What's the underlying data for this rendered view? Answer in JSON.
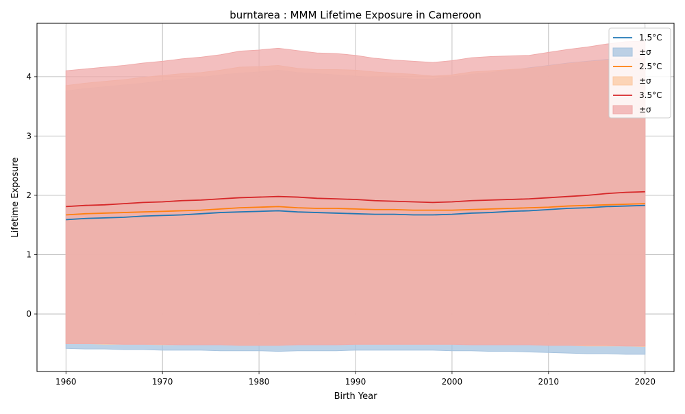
{
  "chart_data": {
    "type": "area",
    "title": "burntarea : MMM Lifetime Exposure in Cameroon",
    "xlabel": "Birth Year",
    "ylabel": "Lifetime Exposure",
    "xlim": [
      1957,
      2023
    ],
    "ylim": [
      -0.97,
      4.9
    ],
    "xticks": [
      1960,
      1970,
      1980,
      1990,
      2000,
      2010,
      2020
    ],
    "yticks": [
      0,
      1,
      2,
      3,
      4
    ],
    "grid": true,
    "legend_position": "top-right",
    "band_label": "±σ",
    "x": [
      1960,
      1962,
      1964,
      1966,
      1968,
      1970,
      1972,
      1974,
      1976,
      1978,
      1980,
      1982,
      1984,
      1986,
      1988,
      1990,
      1992,
      1994,
      1996,
      1998,
      2000,
      2002,
      2004,
      2006,
      2008,
      2010,
      2012,
      2014,
      2016,
      2018,
      2020
    ],
    "series": [
      {
        "name": "1.5°C",
        "color": "#1f77b4",
        "band_color": "#a6c3df",
        "mean": [
          1.59,
          1.61,
          1.62,
          1.63,
          1.65,
          1.66,
          1.67,
          1.69,
          1.71,
          1.72,
          1.73,
          1.74,
          1.72,
          1.71,
          1.7,
          1.69,
          1.68,
          1.68,
          1.67,
          1.67,
          1.68,
          1.7,
          1.71,
          1.73,
          1.74,
          1.76,
          1.78,
          1.79,
          1.81,
          1.82,
          1.83
        ],
        "upper": [
          3.76,
          3.8,
          3.83,
          3.86,
          3.89,
          3.93,
          3.96,
          3.99,
          4.03,
          4.06,
          4.08,
          4.11,
          4.07,
          4.05,
          4.03,
          4.01,
          3.99,
          3.98,
          3.96,
          3.96,
          4.0,
          4.04,
          4.07,
          4.11,
          4.15,
          4.19,
          4.23,
          4.26,
          4.29,
          4.3,
          4.3
        ],
        "lower": [
          -0.58,
          -0.59,
          -0.59,
          -0.6,
          -0.6,
          -0.61,
          -0.61,
          -0.61,
          -0.62,
          -0.62,
          -0.62,
          -0.63,
          -0.62,
          -0.62,
          -0.62,
          -0.61,
          -0.61,
          -0.61,
          -0.61,
          -0.61,
          -0.62,
          -0.62,
          -0.63,
          -0.63,
          -0.64,
          -0.65,
          -0.66,
          -0.67,
          -0.67,
          -0.68,
          -0.68
        ]
      },
      {
        "name": "2.5°C",
        "color": "#ff7f0e",
        "band_color": "#fbc9a2",
        "mean": [
          1.67,
          1.69,
          1.7,
          1.71,
          1.72,
          1.73,
          1.74,
          1.75,
          1.77,
          1.79,
          1.8,
          1.81,
          1.79,
          1.78,
          1.78,
          1.77,
          1.76,
          1.76,
          1.75,
          1.75,
          1.75,
          1.76,
          1.77,
          1.78,
          1.79,
          1.8,
          1.82,
          1.83,
          1.84,
          1.85,
          1.86
        ],
        "upper": [
          3.85,
          3.89,
          3.92,
          3.95,
          3.99,
          4.02,
          4.05,
          4.07,
          4.11,
          4.16,
          4.17,
          4.19,
          4.14,
          4.12,
          4.12,
          4.11,
          4.08,
          4.06,
          4.04,
          4.01,
          4.03,
          4.08,
          4.1,
          4.12,
          4.14,
          4.18,
          4.22,
          4.25,
          4.27,
          4.29,
          4.3
        ],
        "lower": [
          -0.5,
          -0.5,
          -0.51,
          -0.51,
          -0.51,
          -0.52,
          -0.52,
          -0.52,
          -0.52,
          -0.53,
          -0.53,
          -0.53,
          -0.52,
          -0.52,
          -0.52,
          -0.51,
          -0.51,
          -0.51,
          -0.51,
          -0.51,
          -0.51,
          -0.52,
          -0.52,
          -0.52,
          -0.52,
          -0.53,
          -0.53,
          -0.54,
          -0.54,
          -0.54,
          -0.55
        ]
      },
      {
        "name": "3.5°C",
        "color": "#d62728",
        "band_color": "#efaaaa",
        "mean": [
          1.81,
          1.83,
          1.84,
          1.86,
          1.88,
          1.89,
          1.91,
          1.92,
          1.94,
          1.96,
          1.97,
          1.98,
          1.97,
          1.95,
          1.94,
          1.93,
          1.91,
          1.9,
          1.89,
          1.88,
          1.89,
          1.91,
          1.92,
          1.93,
          1.94,
          1.96,
          1.98,
          2.0,
          2.03,
          2.05,
          2.06
        ],
        "upper": [
          4.1,
          4.13,
          4.16,
          4.19,
          4.23,
          4.26,
          4.3,
          4.33,
          4.37,
          4.43,
          4.45,
          4.48,
          4.44,
          4.4,
          4.39,
          4.36,
          4.31,
          4.28,
          4.26,
          4.24,
          4.27,
          4.32,
          4.34,
          4.35,
          4.36,
          4.41,
          4.46,
          4.5,
          4.55,
          4.59,
          4.6
        ],
        "lower": [
          -0.5,
          -0.5,
          -0.5,
          -0.51,
          -0.51,
          -0.51,
          -0.52,
          -0.52,
          -0.52,
          -0.53,
          -0.53,
          -0.53,
          -0.52,
          -0.52,
          -0.52,
          -0.51,
          -0.51,
          -0.51,
          -0.51,
          -0.51,
          -0.51,
          -0.52,
          -0.52,
          -0.52,
          -0.52,
          -0.53,
          -0.53,
          -0.53,
          -0.53,
          -0.54,
          -0.54
        ]
      }
    ]
  }
}
